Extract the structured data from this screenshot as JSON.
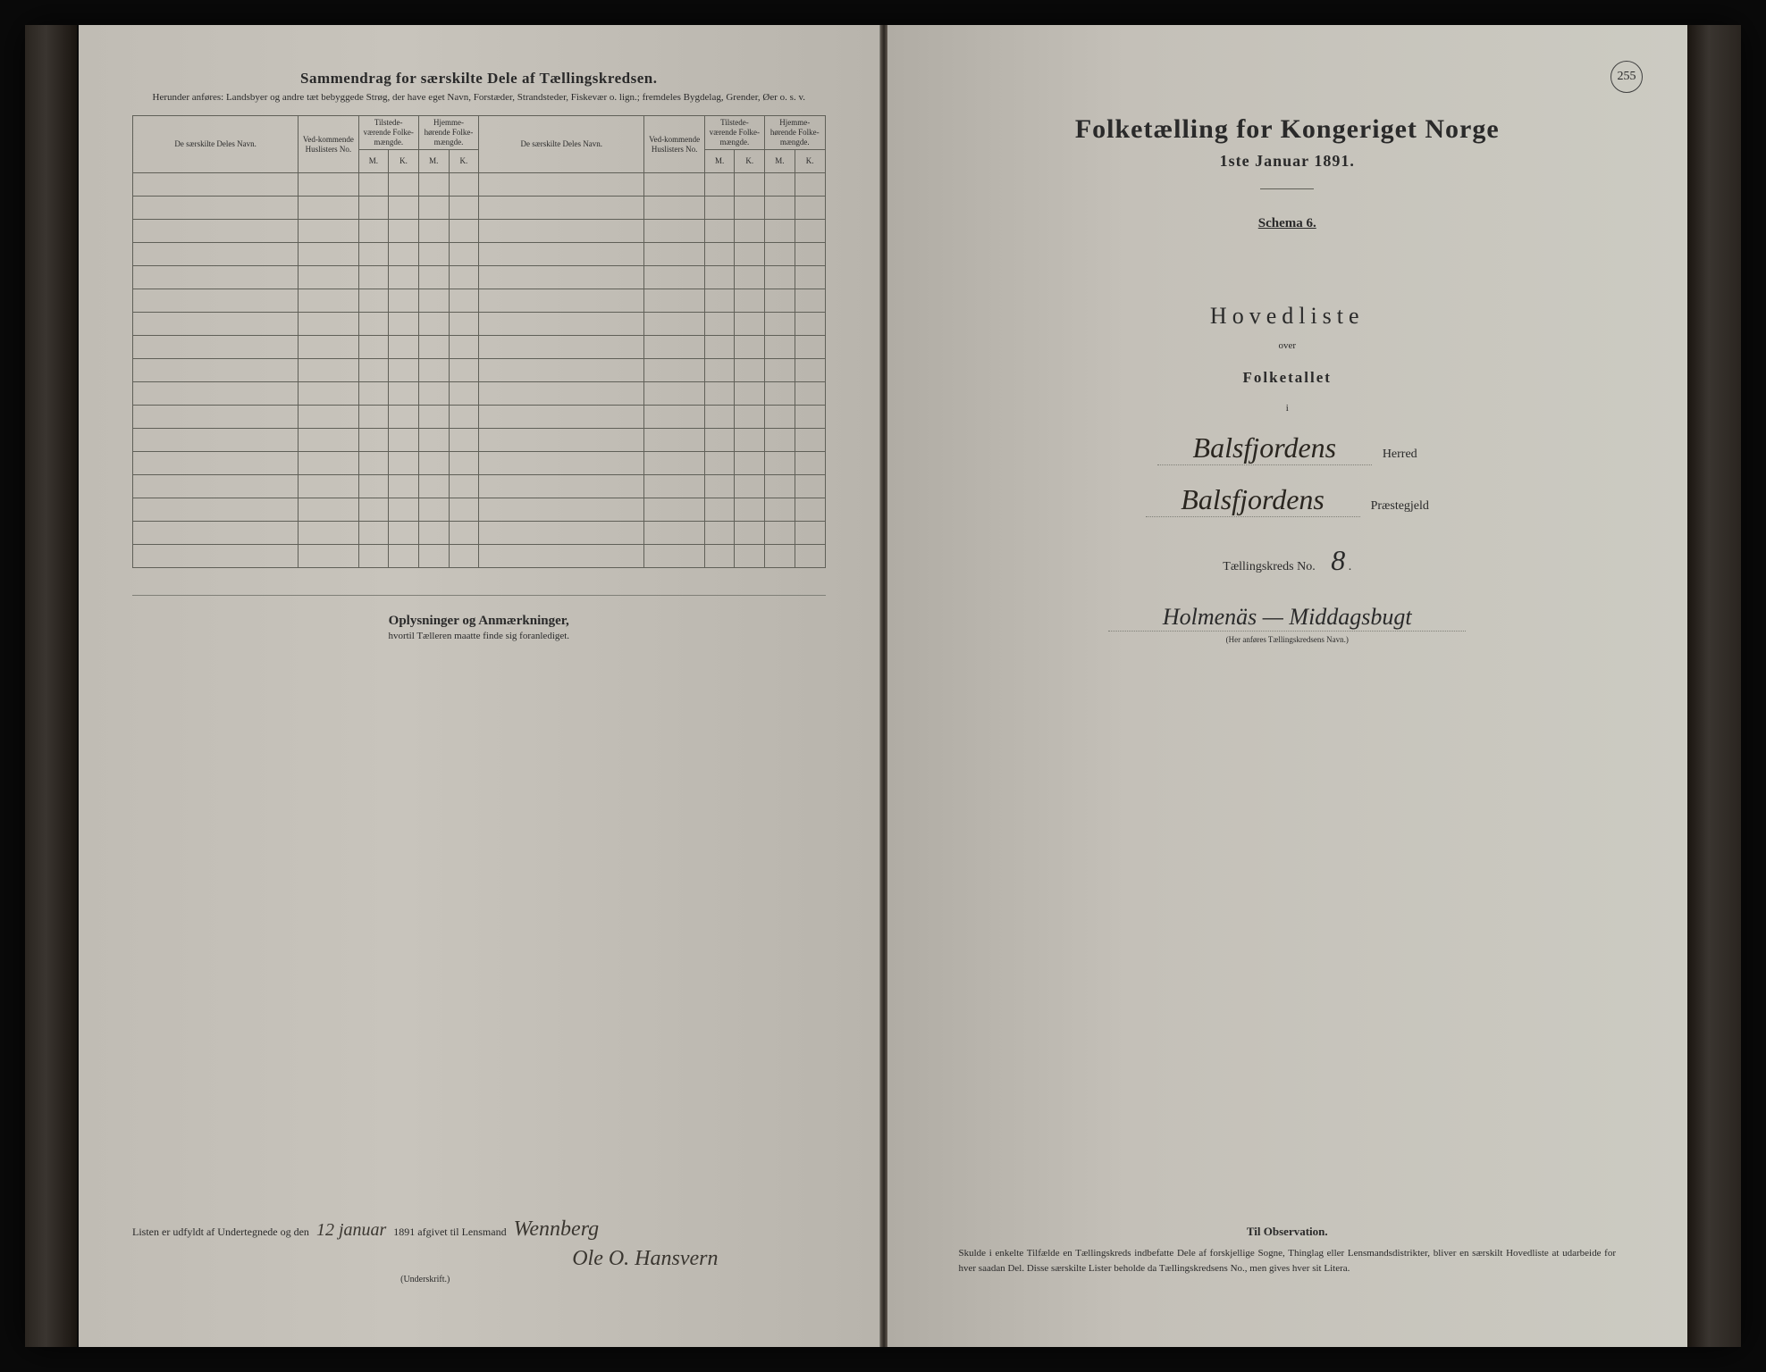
{
  "page_number": "255",
  "left": {
    "title": "Sammendrag for særskilte Dele af Tællingskredsen.",
    "subtitle": "Herunder anføres:  Landsbyer og andre tæt bebyggede Strøg, der have eget Navn, Forstæder, Strandsteder, Fiskevær o. lign.; fremdeles Bygdelag, Grender, Øer o. s. v.",
    "table": {
      "col_navn": "De særskilte Deles Navn.",
      "col_huslister": "Ved-kommende Huslisters No.",
      "col_tilstede": "Tilstede-værende Folke-mængde.",
      "col_hjemme": "Hjemme-hørende Folke-mængde.",
      "col_m": "M.",
      "col_k": "K.",
      "row_count": 17
    },
    "oplysninger_title": "Oplysninger og Anmærkninger,",
    "oplysninger_sub": "hvortil Tælleren maatte finde sig foranlediget.",
    "signature_prefix": "Listen er udfyldt af Undertegnede og den",
    "signature_date": "12 januar",
    "signature_year": "1891 afgivet til Lensmand",
    "signature_name1": "Wennberg",
    "signature_name2": "Ole O. Hansvern",
    "underskrift": "(Underskrift.)"
  },
  "right": {
    "main_title": "Folketælling for Kongeriget Norge",
    "date": "1ste Januar 1891.",
    "schema": "Schema 6.",
    "hovedliste": "Hovedliste",
    "over": "over",
    "folketallet": "Folketallet",
    "i": "i",
    "herred_hand": "Balsfjordens",
    "herred_label": "Herred",
    "prestegjeld_hand": "Balsfjordens",
    "prestegjeld_label": "Præstegjeld",
    "kreds_label": "Tællingskreds No.",
    "kreds_no": "8",
    "kreds_name": "Holmenäs — Middagsbugt",
    "kreds_caption": "(Her anføres Tællingskredsens Navn.)",
    "obs_title": "Til Observation.",
    "obs_text": "Skulde i enkelte Tilfælde en Tællingskreds indbefatte Dele af forskjellige Sogne, Thinglag eller Lensmandsdistrikter, bliver en særskilt Hovedliste at udarbeide for hver saadan Del. Disse særskilte Lister beholde da Tællingskredsens No., men gives hver sit Litera."
  }
}
